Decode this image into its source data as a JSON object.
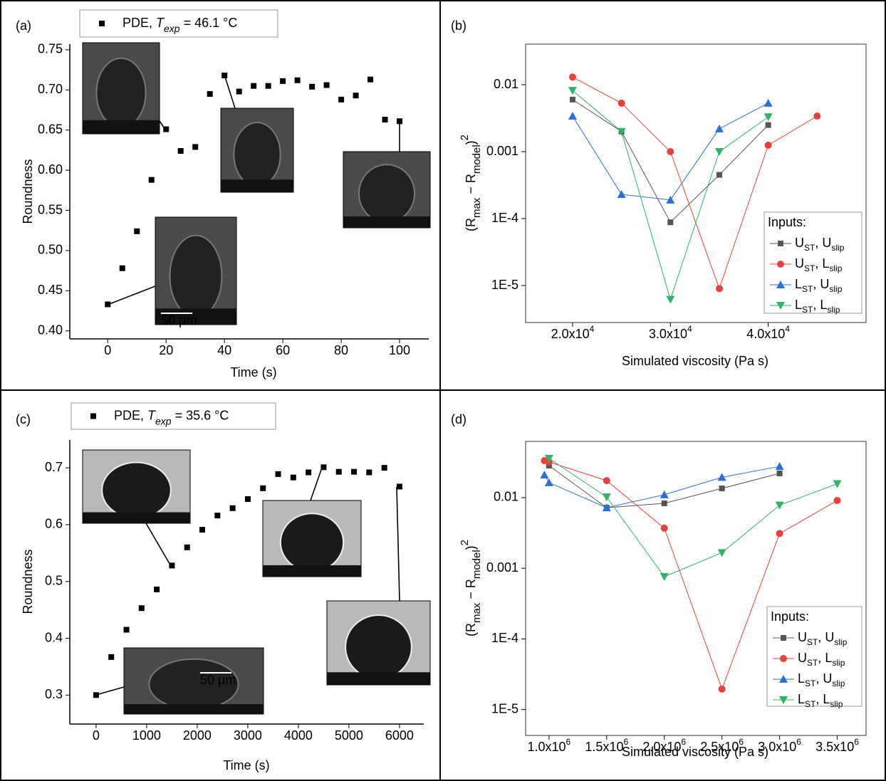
{
  "chart_data": [
    {
      "type": "scatter",
      "panel_label": "(a)",
      "xlabel": "Time (s)",
      "ylabel": "Roundness",
      "legend_label": [
        {
          "text": "PDE, "
        },
        {
          "text": "T",
          "italic": true
        },
        {
          "text": "exp",
          "italic": true,
          "script": "sub"
        },
        {
          "text": " = 46.1 °C"
        }
      ],
      "annotations": [
        "50 µm"
      ],
      "x": [
        0,
        5,
        10,
        15,
        20,
        25,
        30,
        35,
        40,
        45,
        50,
        55,
        60,
        65,
        70,
        75,
        80,
        85,
        90,
        95,
        100
      ],
      "series": [
        {
          "color": "#000000",
          "values": [
            0.433,
            0.478,
            0.524,
            0.588,
            0.651,
            0.624,
            0.629,
            0.695,
            0.718,
            0.698,
            0.705,
            0.705,
            0.711,
            0.712,
            0.704,
            0.706,
            0.688,
            0.693,
            0.713,
            0.663,
            0.661
          ]
        }
      ],
      "xlim": [
        -13,
        110
      ],
      "xticks": [
        0,
        20,
        40,
        60,
        80,
        100
      ],
      "ylim": [
        0.39,
        0.757
      ],
      "yticks": [
        {
          "value": 0.4,
          "label": "0.40"
        },
        0.45,
        {
          "value": 0.5,
          "label": "0.50"
        },
        0.55,
        {
          "value": 0.6,
          "label": "0.60"
        },
        0.65,
        {
          "value": 0.7,
          "label": "0.70"
        },
        0.75
      ]
    },
    {
      "type": "line",
      "panel_label": "(b)",
      "xlabel": "Simulated viscosity (Pa s)",
      "ylabel": [
        {
          "text": "(R"
        },
        {
          "text": "max",
          "script": "sub"
        },
        {
          "text": " − R"
        },
        {
          "text": "model",
          "script": "sub"
        },
        {
          "text": ")"
        },
        {
          "text": "2",
          "script": "super"
        }
      ],
      "legend_title": "Inputs:",
      "log_y": true,
      "x": [
        20000,
        25000,
        30000,
        35000,
        40000,
        45000
      ],
      "series": [
        {
          "name": "UST, Uslip",
          "color": "#555555",
          "marker": "square",
          "values": [
            0.006,
            0.002,
            8.8e-05,
            0.00045,
            0.0025,
            null
          ]
        },
        {
          "name": "UST, Lslip",
          "color": "#e8403d",
          "marker": "circle",
          "values": [
            0.013,
            0.0053,
            0.001,
            9e-06,
            0.00125,
            0.0034
          ]
        },
        {
          "name": "LST, Uslip",
          "color": "#2a6fdb",
          "marker": "triangle-up",
          "values": [
            0.0034,
            0.00023,
            0.00019,
            0.0022,
            0.0053,
            null
          ]
        },
        {
          "name": "LST, Lslip",
          "color": "#2fb36a",
          "marker": "triangle-down",
          "values": [
            0.0082,
            0.002,
            6.2e-06,
            0.001,
            0.0033,
            null
          ]
        }
      ],
      "xlim": [
        15200,
        50000
      ],
      "xticks": [
        {
          "value": 20000,
          "label": "2.0x104"
        },
        {
          "value": 30000,
          "label": "3.0x104"
        },
        {
          "value": 40000,
          "label": "4.0x104"
        }
      ],
      "ylim": [
        2.8e-06,
        0.0404
      ],
      "yticks": [
        0.01,
        0.001,
        {
          "value": 0.0001,
          "label": "1E-4"
        },
        {
          "value": 1e-05,
          "label": "1E-5"
        }
      ]
    },
    {
      "type": "scatter",
      "panel_label": "(c)",
      "xlabel": "Time (s)",
      "ylabel": "Roundness",
      "legend_label": [
        {
          "text": "PDE, "
        },
        {
          "text": "T",
          "italic": true
        },
        {
          "text": "exp",
          "italic": true,
          "script": "sub"
        },
        {
          "text": " = 35.6 °C"
        }
      ],
      "annotations": [
        "50 µm"
      ],
      "x": [
        0,
        300,
        600,
        900,
        1200,
        1500,
        1800,
        2100,
        2400,
        2700,
        3000,
        3300,
        3600,
        3900,
        4200,
        4500,
        4800,
        5100,
        5400,
        5700,
        6000
      ],
      "series": [
        {
          "color": "#000000",
          "values": [
            0.3,
            0.367,
            0.415,
            0.453,
            0.486,
            0.528,
            0.56,
            0.591,
            0.616,
            0.629,
            0.645,
            0.664,
            0.689,
            0.683,
            0.692,
            0.701,
            0.693,
            0.693,
            0.692,
            0.7,
            0.667
          ]
        }
      ],
      "xlim": [
        -520,
        6480
      ],
      "xticks": [
        0,
        1000,
        2000,
        3000,
        4000,
        5000,
        6000
      ],
      "ylim": [
        0.249,
        0.749
      ],
      "yticks": [
        0.3,
        0.4,
        0.5,
        0.6,
        0.7
      ]
    },
    {
      "type": "line",
      "panel_label": "(d)",
      "xlabel": "Simulated viscosity (Pa s)",
      "ylabel": [
        {
          "text": "(R"
        },
        {
          "text": "max",
          "script": "sub"
        },
        {
          "text": " − R"
        },
        {
          "text": "model",
          "script": "sub"
        },
        {
          "text": ")"
        },
        {
          "text": "2",
          "script": "super"
        }
      ],
      "legend_title": "Inputs:",
      "log_y": true,
      "x": [
        960000,
        1000000,
        1500000,
        2000000,
        2500000,
        3000000,
        3500000
      ],
      "series": [
        {
          "name": "UST, Uslip",
          "color": "#555555",
          "marker": "square",
          "values": [
            null,
            0.0284,
            0.0072,
            0.0083,
            0.0135,
            0.022,
            null
          ]
        },
        {
          "name": "UST, Lslip",
          "color": "#e8403d",
          "marker": "circle",
          "values": [
            0.0334,
            0.032,
            0.0174,
            0.0037,
            1.95e-05,
            0.0031,
            0.0091
          ]
        },
        {
          "name": "LST, Uslip",
          "color": "#2a6fdb",
          "marker": "triangle-up",
          "values": [
            0.021,
            0.0163,
            0.0072,
            0.011,
            0.0194,
            0.0277,
            null
          ]
        },
        {
          "name": "LST, Lslip",
          "color": "#2fb36a",
          "marker": "triangle-down",
          "values": [
            null,
            0.0358,
            0.0102,
            0.00076,
            0.00166,
            0.0078,
            0.0157
          ]
        }
      ],
      "xlim": [
        797000,
        3750000
      ],
      "xticks": [
        {
          "value": 1000000,
          "label": "1.0x106"
        },
        {
          "value": 1500000,
          "label": "1.5x106"
        },
        {
          "value": 2000000,
          "label": "2.0x106"
        },
        {
          "value": 2500000,
          "label": "2.5x106"
        },
        {
          "value": 3000000,
          "label": "3.0x106"
        },
        {
          "value": 3500000,
          "label": "3.5x106"
        }
      ],
      "ylim": [
        4.3e-06,
        0.0625
      ],
      "yticks": [
        0.01,
        0.001,
        {
          "value": 0.0001,
          "label": "1E-4"
        },
        {
          "value": 1e-05,
          "label": "1E-5"
        }
      ]
    }
  ]
}
